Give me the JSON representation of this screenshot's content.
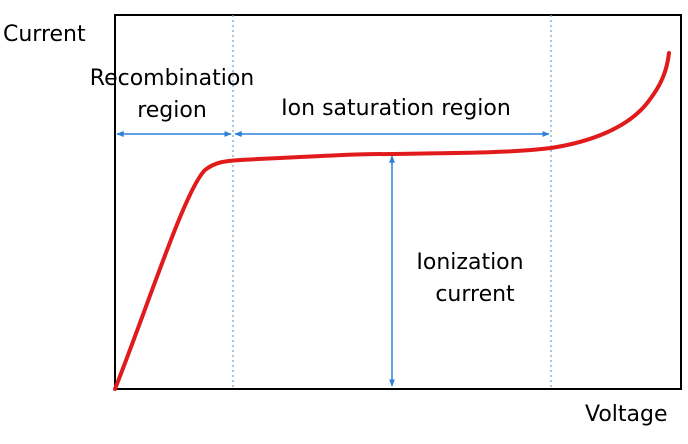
{
  "labels": {
    "y_axis": "Current",
    "x_axis": "Voltage",
    "recombination_line1": "Recombination",
    "recombination_line2": "region",
    "ion_saturation": "Ion saturation region",
    "ionization_line1": "Ionization",
    "ionization_line2": "current"
  },
  "colors": {
    "curve": "#e11b1b",
    "arrows": "#2f80d8",
    "divider": "#6a9fd8",
    "frame": "#000000"
  }
}
